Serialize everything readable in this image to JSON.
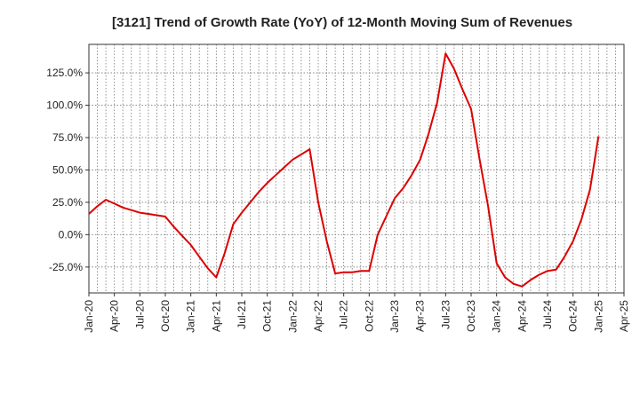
{
  "chart_data": {
    "type": "line",
    "title": "[3121]  Trend of Growth Rate (YoY) of 12-Month Moving Sum of Revenues",
    "xlabel": "",
    "ylabel": "",
    "x_ticks": [
      "Jan-20",
      "Apr-20",
      "Jul-20",
      "Oct-20",
      "Jan-21",
      "Apr-21",
      "Jul-21",
      "Oct-21",
      "Jan-22",
      "Apr-22",
      "Jul-22",
      "Oct-22",
      "Jan-23",
      "Apr-23",
      "Jul-23",
      "Oct-23",
      "Jan-24",
      "Apr-24",
      "Jul-24",
      "Oct-24",
      "Jan-25",
      "Apr-25"
    ],
    "y_ticks": [
      -25,
      0,
      25,
      50,
      75,
      100,
      125
    ],
    "y_tick_labels": [
      "-25.0%",
      "0.0%",
      "25.0%",
      "50.0%",
      "75.0%",
      "100.0%",
      "125.0%"
    ],
    "ylim": [
      -45,
      147
    ],
    "grid": true,
    "line_color": "#dd0000",
    "series": [
      {
        "x": [
          "Jan-20",
          "Feb-20",
          "Mar-20",
          "Apr-20",
          "May-20",
          "Jun-20",
          "Jul-20",
          "Aug-20",
          "Sep-20",
          "Oct-20",
          "Nov-20",
          "Dec-20",
          "Jan-21",
          "Feb-21",
          "Mar-21",
          "Apr-21",
          "May-21",
          "Jun-21",
          "Jul-21",
          "Aug-21",
          "Sep-21",
          "Oct-21",
          "Nov-21",
          "Dec-21",
          "Jan-22",
          "Feb-22",
          "Mar-22",
          "Apr-22",
          "May-22",
          "Jun-22",
          "Jul-22",
          "Aug-22",
          "Sep-22",
          "Oct-22",
          "Nov-22",
          "Dec-22",
          "Jan-23",
          "Feb-23",
          "Mar-23",
          "Apr-23",
          "May-23",
          "Jun-23",
          "Jul-23",
          "Aug-23",
          "Sep-23",
          "Oct-23",
          "Nov-23",
          "Dec-23",
          "Jan-24",
          "Feb-24",
          "Mar-24",
          "Apr-24",
          "May-24",
          "Jun-24",
          "Jul-24",
          "Aug-24",
          "Sep-24",
          "Oct-24",
          "Nov-24",
          "Dec-24",
          "Jan-25"
        ],
        "values": [
          16,
          22,
          27,
          24,
          21,
          19,
          17,
          16,
          15,
          14,
          6,
          -1,
          -8,
          -17,
          -26,
          -33,
          -14,
          8,
          17,
          25,
          33,
          40,
          46,
          52,
          58,
          62,
          66,
          25,
          -5,
          -30,
          -29,
          -29,
          -28,
          -28,
          0,
          14,
          28,
          36,
          46,
          58,
          78,
          102,
          140,
          128,
          112,
          97,
          58,
          22,
          -22,
          -33,
          -38,
          -40,
          -35,
          -31,
          -28,
          -27,
          -17,
          -5,
          12,
          35,
          76
        ]
      }
    ]
  }
}
